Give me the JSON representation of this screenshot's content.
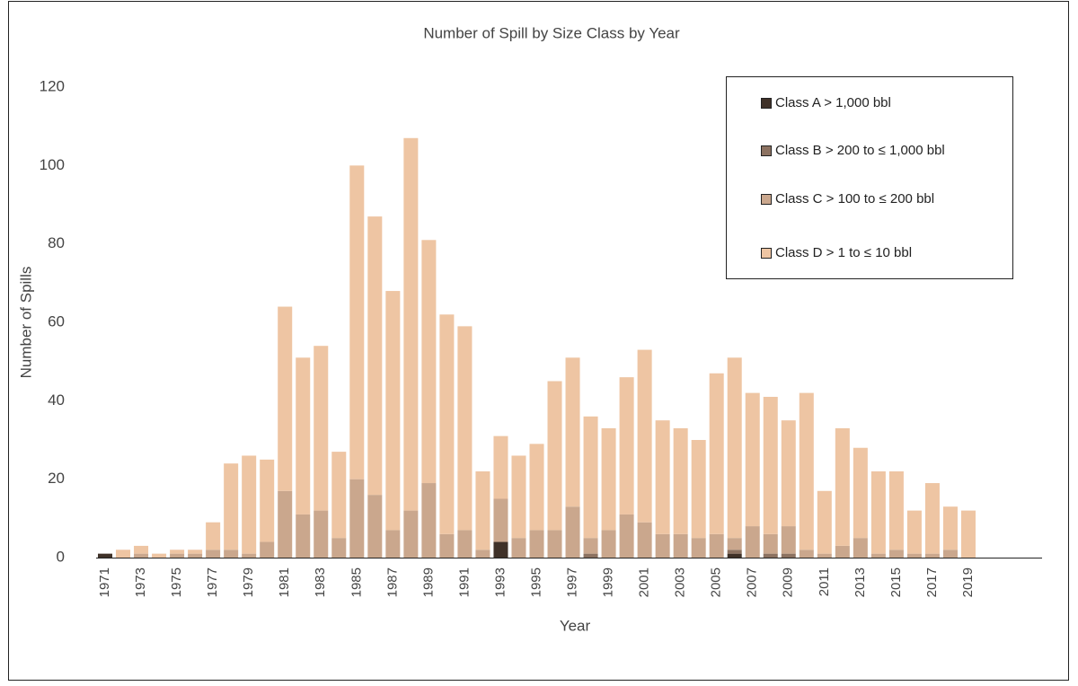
{
  "chart_data": {
    "type": "stacked_bar",
    "title": "Number of Spill by Size Class by Year",
    "x_label": "Year",
    "y_label": "Number of  Spills",
    "categories": [
      "1971",
      null,
      "1973",
      null,
      "1975",
      null,
      "1977",
      null,
      "1979",
      null,
      "1981",
      null,
      "1983",
      null,
      "1985",
      null,
      "1987",
      null,
      "1989",
      null,
      "1991",
      null,
      "1993",
      null,
      "1995",
      null,
      "1997",
      null,
      "1999",
      null,
      "2001",
      null,
      "2003",
      null,
      "2005",
      null,
      "2007",
      null,
      "2009",
      null,
      "2011",
      null,
      "2013",
      null,
      "2015",
      null,
      "2017",
      null,
      "2019"
    ],
    "series": [
      {
        "name": "Class A > 1,000 bbl",
        "color": "#3f3128",
        "values": [
          1,
          0,
          0,
          0,
          0,
          0,
          0,
          0,
          0,
          0,
          0,
          0,
          0,
          0,
          0,
          0,
          0,
          0,
          0,
          0,
          0,
          0,
          4,
          0,
          0,
          0,
          0,
          0,
          0,
          0,
          0,
          0,
          0,
          0,
          0,
          1,
          0,
          0,
          0,
          0,
          0,
          0,
          0,
          0,
          0,
          0,
          0,
          0,
          0
        ]
      },
      {
        "name": "Class B > 200 to ≤ 1,000 bbl",
        "color": "#8c7261",
        "values": [
          0,
          0,
          0,
          0,
          0,
          0,
          0,
          0,
          0,
          0,
          0,
          0,
          0,
          0,
          0,
          0,
          0,
          0,
          0,
          0,
          0,
          0,
          0,
          0,
          0,
          0,
          0,
          1,
          0,
          0,
          0,
          0,
          0,
          0,
          0,
          1,
          0,
          1,
          1,
          0,
          0,
          0,
          0,
          0,
          0,
          0,
          0,
          0,
          0
        ]
      },
      {
        "name": "Class C > 100 to ≤ 200 bbl",
        "color": "#caa78d",
        "values": [
          0,
          0,
          1,
          0,
          1,
          1,
          2,
          2,
          1,
          4,
          17,
          11,
          12,
          5,
          20,
          16,
          7,
          12,
          19,
          6,
          7,
          2,
          11,
          5,
          7,
          7,
          13,
          4,
          7,
          11,
          9,
          6,
          6,
          5,
          6,
          3,
          8,
          5,
          7,
          2,
          1,
          3,
          5,
          1,
          2,
          1,
          1,
          2,
          0
        ]
      },
      {
        "name": "Class D > 1 to ≤ 10 bbl",
        "color": "#eec5a3",
        "values": [
          0,
          2,
          2,
          1,
          1,
          1,
          7,
          22,
          25,
          21,
          47,
          40,
          42,
          22,
          80,
          71,
          61,
          95,
          62,
          56,
          52,
          20,
          16,
          21,
          22,
          38,
          38,
          31,
          26,
          35,
          44,
          29,
          27,
          25,
          41,
          46,
          34,
          35,
          27,
          40,
          16,
          30,
          23,
          21,
          20,
          11,
          18,
          11,
          12
        ]
      }
    ],
    "ylim": [
      0,
      120
    ],
    "yticks": [
      0,
      20,
      40,
      60,
      80,
      100,
      120
    ],
    "grid": false
  }
}
